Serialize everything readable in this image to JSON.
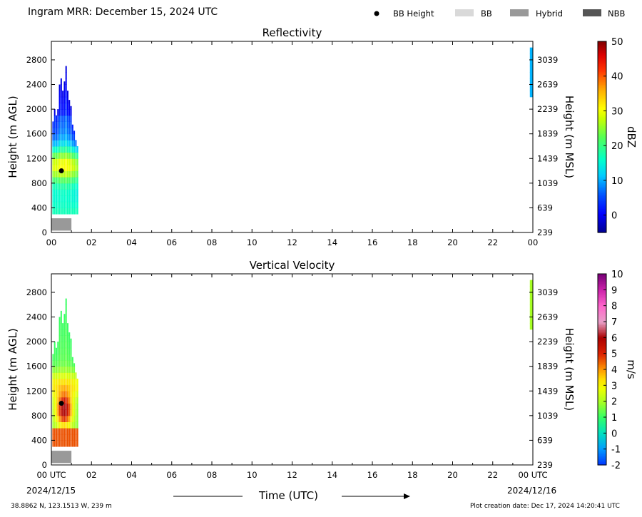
{
  "header": {
    "title": "Ingram MRR:  December 15, 2024 UTC",
    "legend": [
      {
        "label": "BB Height",
        "kind": "dot",
        "color": "#000000"
      },
      {
        "label": "BB",
        "kind": "box",
        "color": "#d9d9d9"
      },
      {
        "label": "Hybrid",
        "kind": "box",
        "color": "#999999"
      },
      {
        "label": "NBB",
        "kind": "box",
        "color": "#555555"
      }
    ]
  },
  "footer": {
    "xlabel": "Time (UTC)",
    "date_left": "2024/12/15",
    "date_right": "2024/12/16",
    "location": "38.8862 N, 123.1513 W, 239 m",
    "created": "Plot creation date: Dec 17, 2024 14:20:41 UTC"
  },
  "chart_data": [
    {
      "type": "heatmap",
      "title": "Reflectivity",
      "ylabel_left": "Height (m AGL)",
      "ylabel_right": "Height (m MSL)",
      "yticks_left": [
        0,
        400,
        800,
        1200,
        1600,
        2000,
        2400,
        2800
      ],
      "yticks_right": [
        239,
        639,
        1039,
        1439,
        1839,
        2239,
        2639,
        3039
      ],
      "xticks": [
        "00",
        "02",
        "04",
        "06",
        "08",
        "10",
        "12",
        "14",
        "16",
        "18",
        "20",
        "22",
        "00"
      ],
      "xlim_hours": [
        0,
        24
      ],
      "ylim_m": [
        0,
        3100
      ],
      "colorbar": {
        "label": "dBZ",
        "ticks": [
          0,
          10,
          20,
          30,
          40,
          50
        ],
        "range": [
          -5,
          50
        ]
      },
      "bright_band_height": {
        "time_hr": 0.5,
        "height_m": 1000
      },
      "bright_band_type": {
        "label": "Hybrid",
        "start_hr": 0,
        "end_hr": 1
      }
    },
    {
      "type": "heatmap",
      "title": "Vertical Velocity",
      "ylabel_left": "Height (m AGL)",
      "ylabel_right": "Height (m MSL)",
      "yticks_left": [
        0,
        400,
        800,
        1200,
        1600,
        2000,
        2400,
        2800
      ],
      "yticks_right": [
        239,
        639,
        1039,
        1439,
        1839,
        2239,
        2639,
        3039
      ],
      "xticks": [
        "00 UTC",
        "02",
        "04",
        "06",
        "08",
        "10",
        "12",
        "14",
        "16",
        "18",
        "20",
        "22",
        "00 UTC"
      ],
      "xlim_hours": [
        0,
        24
      ],
      "ylim_m": [
        0,
        3100
      ],
      "colorbar": {
        "label": "m/s",
        "ticks": [
          -2,
          -1,
          0,
          1,
          2,
          3,
          4,
          5,
          6,
          7,
          8,
          9,
          10
        ],
        "range": [
          -2,
          10
        ]
      },
      "bright_band_height": {
        "time_hr": 0.5,
        "height_m": 1000
      },
      "bright_band_type": {
        "label": "Hybrid",
        "start_hr": 0,
        "end_hr": 1
      }
    }
  ]
}
